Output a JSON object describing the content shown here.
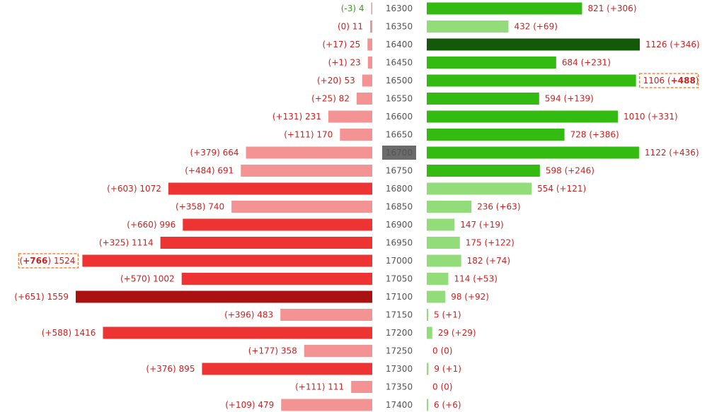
{
  "chart_data": {
    "type": "bar",
    "title": "",
    "xlabel": "",
    "ylabel": "",
    "categories": [
      "16300",
      "16350",
      "16400",
      "16450",
      "16500",
      "16550",
      "16600",
      "16650",
      "16700",
      "16750",
      "16800",
      "16850",
      "16900",
      "16950",
      "17000",
      "17050",
      "17100",
      "17150",
      "17200",
      "17250",
      "17300",
      "17350",
      "17400"
    ],
    "highlighted_category": "16700",
    "series": [
      {
        "side": "left",
        "values": [
          4,
          11,
          25,
          23,
          53,
          82,
          231,
          170,
          664,
          691,
          1072,
          740,
          996,
          1114,
          1524,
          1002,
          1559,
          483,
          1416,
          358,
          895,
          111,
          479
        ],
        "changes": [
          "-3",
          "0",
          "+17",
          "+1",
          "+20",
          "+25",
          "+131",
          "+111",
          "+379",
          "+484",
          "+603",
          "+358",
          "+660",
          "+325",
          "+766",
          "+570",
          "+651",
          "+396",
          "+588",
          "+177",
          "+376",
          "+111",
          "+109"
        ],
        "shades": [
          "light",
          "light",
          "light",
          "light",
          "light",
          "light",
          "light",
          "light",
          "light",
          "light",
          "medium",
          "light",
          "medium",
          "medium",
          "medium",
          "medium",
          "dark",
          "light",
          "medium",
          "light",
          "medium",
          "light",
          "light"
        ],
        "highlight_index": 14
      },
      {
        "side": "right",
        "values": [
          821,
          432,
          1126,
          684,
          1106,
          594,
          1010,
          728,
          1122,
          598,
          554,
          236,
          147,
          175,
          182,
          114,
          98,
          5,
          29,
          0,
          9,
          0,
          6
        ],
        "changes": [
          "+306",
          "+69",
          "+346",
          "+231",
          "+488",
          "+139",
          "+331",
          "+386",
          "+436",
          "+246",
          "+121",
          "+63",
          "+19",
          "+122",
          "+74",
          "+53",
          "+92",
          "+1",
          "+29",
          "0",
          "+1",
          "0",
          "+6"
        ],
        "shades": [
          "medium",
          "light",
          "dark",
          "medium",
          "medium",
          "medium",
          "medium",
          "medium",
          "medium",
          "medium",
          "light",
          "light",
          "light",
          "light",
          "light",
          "light",
          "light",
          "light",
          "light",
          "light",
          "light",
          "light",
          "light"
        ],
        "highlight_index": 4
      }
    ],
    "colors": {
      "left": {
        "light": "#f49393",
        "medium": "#ee3333",
        "dark": "#aa1111",
        "text": "#cc2222",
        "negative_text": "#33a01a"
      },
      "right": {
        "light": "#92dc7a",
        "medium": "#33bb12",
        "dark": "#135a08",
        "text": "#cc2222"
      },
      "strike_bg": "#6b6b6b",
      "strike_text": "#ffffff",
      "highlight_border": "#f0893a"
    }
  }
}
